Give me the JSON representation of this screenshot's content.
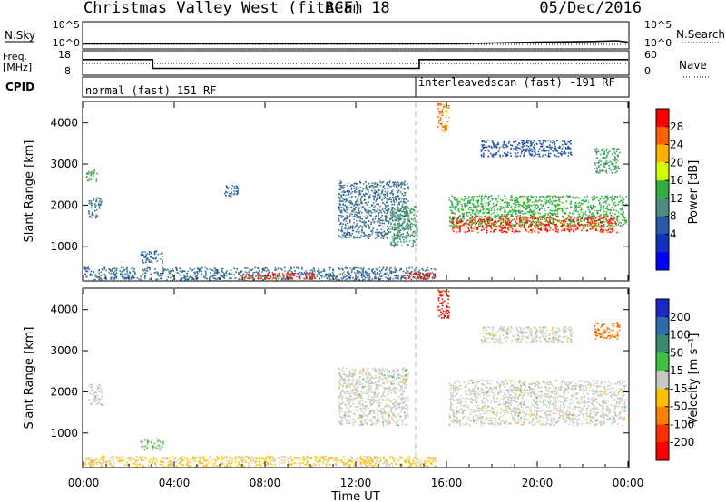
{
  "header": {
    "title": "Christmas Valley West (fitACF)",
    "beam": "Beam 18",
    "date": "05/Dec/2016"
  },
  "strip": {
    "nsky_label": "N.Sky",
    "nsky_ticks": [
      "10^5",
      "10^0"
    ],
    "nsearch_label": "N.Search",
    "nsearch_ticks": [
      "10^5",
      "10^0"
    ],
    "freq_label_1": "Freq.",
    "freq_label_2": "[MHz]",
    "freq_ticks": [
      "18",
      "8"
    ],
    "nave_label": "Nave",
    "nave_ticks": [
      "60",
      "0"
    ],
    "cpid_label": "CPID",
    "cpid_left": "normal (fast) 151 RF",
    "cpid_right": "interleavedscan (fast) -191 RF"
  },
  "power_colorbar": {
    "label": "Power [dB]",
    "ticks": [
      "28",
      "24",
      "20",
      "16",
      "12",
      "8",
      "4"
    ],
    "colors": [
      "#ff0000",
      "#ff6000",
      "#ffb000",
      "#d0ff00",
      "#30b040",
      "#508a80",
      "#2a5aa8",
      "#1030c0",
      "#0000ff"
    ]
  },
  "velocity_colorbar": {
    "label": "Velocity [m s⁻¹]",
    "ticks": [
      "200",
      "100",
      "50",
      "15",
      "-15",
      "-50",
      "-100",
      "-200"
    ],
    "colors": [
      "#1a28c8",
      "#2e6ab0",
      "#3a8a70",
      "#40c040",
      "#c8c8c0",
      "#ffc000",
      "#ff8000",
      "#ff3000",
      "#ff0000"
    ]
  },
  "axes": {
    "ylabel": "Slant Range [km]",
    "yticks": [
      "4000",
      "3000",
      "2000",
      "1000"
    ],
    "xlabel": "Time UT",
    "xticks": [
      "00:00",
      "04:00",
      "08:00",
      "12:00",
      "16:00",
      "20:00",
      "00:00"
    ]
  },
  "chart_data": [
    {
      "type": "line",
      "panel": "noise",
      "series": [
        {
          "name": "N.Sky",
          "style": "solid",
          "x": [
            0,
            2,
            4,
            8,
            12,
            14.5,
            16,
            18,
            20,
            22.5,
            23.5,
            24
          ],
          "y": [
            1,
            1,
            1,
            1,
            1,
            1,
            1,
            1.5,
            2,
            2.5,
            3,
            2
          ]
        },
        {
          "name": "N.Search",
          "style": "dotted",
          "x": [
            0,
            24
          ],
          "y": [
            0,
            0
          ]
        }
      ],
      "ylim": [
        0,
        5
      ]
    },
    {
      "type": "line",
      "panel": "frequency",
      "series": [
        {
          "name": "Freq.",
          "style": "solid",
          "x": [
            0,
            3.05,
            3.05,
            14.8,
            14.8,
            24
          ],
          "y": [
            14.5,
            14.5,
            10.6,
            10.6,
            14.5,
            14.5
          ]
        },
        {
          "name": "Nave",
          "style": "dotted",
          "x": [
            0,
            24
          ],
          "y": [
            12.8,
            12.8
          ]
        }
      ],
      "ylim": [
        8,
        18
      ]
    },
    {
      "type": "heatmap",
      "panel": "power",
      "xlim": [
        0,
        24
      ],
      "ylim": [
        180,
        4500
      ],
      "vlim": [
        0,
        30
      ],
      "regions": [
        {
          "t0": 0,
          "t1": 15.5,
          "r0": 200,
          "r1": 500,
          "value": 10
        },
        {
          "t0": 6.8,
          "t1": 10.2,
          "r0": 220,
          "r1": 360,
          "value": 27
        },
        {
          "t0": 14.1,
          "t1": 15.5,
          "r0": 220,
          "r1": 380,
          "value": 28
        },
        {
          "t0": 0.2,
          "t1": 0.8,
          "r0": 1700,
          "r1": 2200,
          "value": 11
        },
        {
          "t0": 0.1,
          "t1": 0.6,
          "r0": 2600,
          "r1": 2900,
          "value": 14
        },
        {
          "t0": 6.2,
          "t1": 6.8,
          "r0": 2200,
          "r1": 2500,
          "value": 9
        },
        {
          "t0": 11.2,
          "t1": 14.3,
          "r0": 1200,
          "r1": 2600,
          "value": 10
        },
        {
          "t0": 13.5,
          "t1": 14.7,
          "r0": 1000,
          "r1": 2000,
          "value": 13
        },
        {
          "t0": 2.5,
          "t1": 3.5,
          "r0": 600,
          "r1": 900,
          "value": 9
        },
        {
          "t0": 15.6,
          "t1": 16.1,
          "r0": 3800,
          "r1": 4500,
          "value": 24
        },
        {
          "t0": 16.1,
          "t1": 23.9,
          "r0": 1500,
          "r1": 2250,
          "value": 15
        },
        {
          "t0": 16.2,
          "t1": 23.5,
          "r0": 1350,
          "r1": 1750,
          "value": 27
        },
        {
          "t0": 17.5,
          "t1": 21.5,
          "r0": 3200,
          "r1": 3600,
          "value": 8
        },
        {
          "t0": 22.5,
          "t1": 23.6,
          "r0": 2800,
          "r1": 3400,
          "value": 13
        }
      ]
    },
    {
      "type": "heatmap",
      "panel": "velocity",
      "xlim": [
        0,
        24
      ],
      "ylim": [
        180,
        4500
      ],
      "vlim": [
        -250,
        250
      ],
      "regions": [
        {
          "t0": 0,
          "t1": 15.5,
          "r0": 200,
          "r1": 450,
          "value": -40
        },
        {
          "t0": 0.2,
          "t1": 0.8,
          "r0": 1700,
          "r1": 2200,
          "value": 0
        },
        {
          "t0": 11.2,
          "t1": 14.3,
          "r0": 1200,
          "r1": 2600,
          "value": 0
        },
        {
          "t0": 2.5,
          "t1": 3.5,
          "r0": 600,
          "r1": 900,
          "value": 30
        },
        {
          "t0": 15.6,
          "t1": 16.1,
          "r0": 3800,
          "r1": 4500,
          "value": -200
        },
        {
          "t0": 16.1,
          "t1": 23.9,
          "r0": 1200,
          "r1": 2300,
          "value": 0
        },
        {
          "t0": 17.5,
          "t1": 21.5,
          "r0": 3200,
          "r1": 3600,
          "value": 0
        },
        {
          "t0": 22.5,
          "t1": 23.6,
          "r0": 3300,
          "r1": 3700,
          "value": -120
        }
      ]
    }
  ]
}
